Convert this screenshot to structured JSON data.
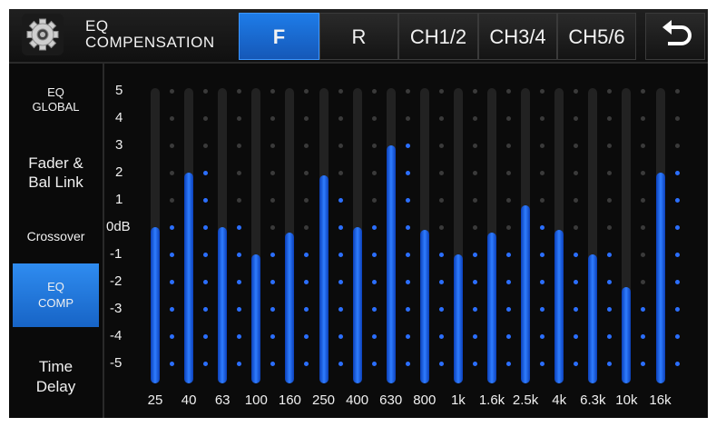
{
  "header": {
    "title_line1": "EQ",
    "title_line2": "COMPENSATION",
    "tabs": [
      {
        "label": "F",
        "active": true
      },
      {
        "label": "R",
        "active": false
      },
      {
        "label": "CH1/2",
        "active": false
      },
      {
        "label": "CH3/4",
        "active": false
      },
      {
        "label": "CH5/6",
        "active": false
      }
    ],
    "settings_icon": "gear-icon",
    "back_icon": "back-arrow-icon"
  },
  "sidebar": {
    "items": [
      {
        "line1": "EQ",
        "line2": "GLOBAL",
        "active": false
      },
      {
        "line1": "Fader &",
        "line2": "Bal Link",
        "active": false
      },
      {
        "line1": "Crossover",
        "line2": "",
        "active": false
      },
      {
        "line1": "EQ",
        "line2": "COMP",
        "active": true
      },
      {
        "line1": "Time",
        "line2": "Delay",
        "active": false
      }
    ]
  },
  "eq": {
    "y_labels": [
      "5",
      "4",
      "3",
      "2",
      "1",
      "0dB",
      "-1",
      "-2",
      "-3",
      "-4",
      "-5"
    ],
    "bands": [
      {
        "freq": "25",
        "level": 0
      },
      {
        "freq": "40",
        "level": 2
      },
      {
        "freq": "63",
        "level": 0
      },
      {
        "freq": "100",
        "level": -1
      },
      {
        "freq": "160",
        "level": -0.2
      },
      {
        "freq": "250",
        "level": 1.9
      },
      {
        "freq": "400",
        "level": 0
      },
      {
        "freq": "630",
        "level": 3
      },
      {
        "freq": "800",
        "level": -0.1
      },
      {
        "freq": "1k",
        "level": -1
      },
      {
        "freq": "1.6k",
        "level": -0.2
      },
      {
        "freq": "2.5k",
        "level": 0.8
      },
      {
        "freq": "4k",
        "level": -0.1
      },
      {
        "freq": "6.3k",
        "level": -1
      },
      {
        "freq": "10k",
        "level": -2.2
      },
      {
        "freq": "16k",
        "level": 2
      }
    ],
    "colors": {
      "accent": "#2f7dff",
      "active_dot": "#2b6fff",
      "inactive_dot": "#3a3a3a"
    }
  }
}
